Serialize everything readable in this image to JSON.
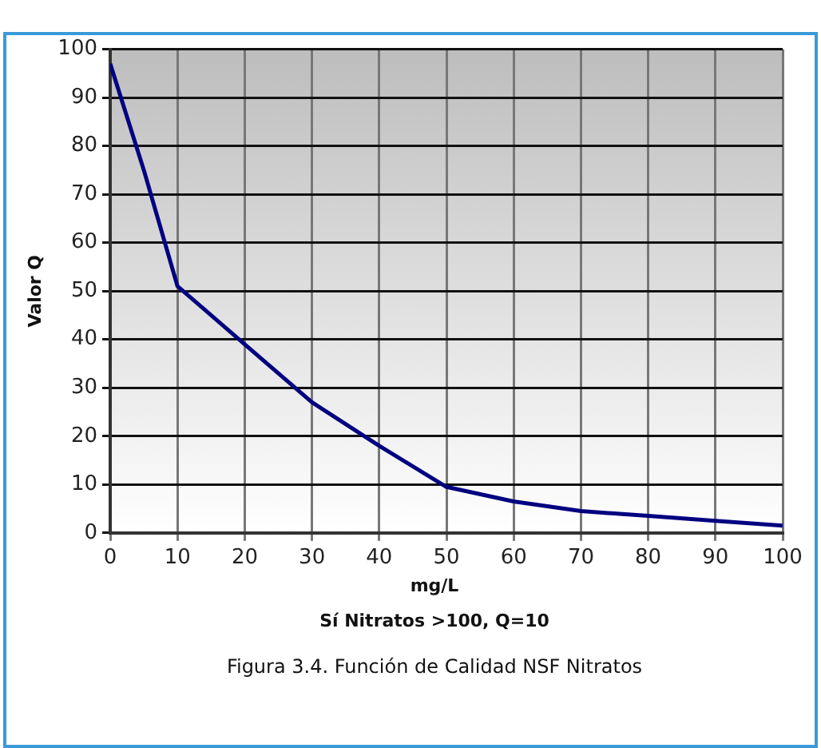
{
  "chart_data": {
    "type": "line",
    "ylabel": "Valor Q",
    "xlabel": "mg/L",
    "annotations": [
      "Sí Nitratos >100, Q=10",
      "Figura 3.4. Función de Calidad NSF Nitratos"
    ],
    "x": [
      0,
      5,
      10,
      20,
      30,
      40,
      50,
      60,
      70,
      80,
      90,
      100
    ],
    "series": [
      {
        "color": "#000080",
        "values": [
          97,
          75,
          51,
          39,
          27,
          18,
          9.5,
          6.5,
          4.5,
          3.5,
          2.5,
          1.5
        ]
      }
    ],
    "xlim": [
      0,
      100
    ],
    "xticks": [
      0,
      10,
      20,
      30,
      40,
      50,
      60,
      70,
      80,
      90,
      100
    ],
    "ylim": [
      0,
      100
    ],
    "yticks": [
      0,
      10,
      20,
      30,
      40,
      50,
      60,
      70,
      80,
      90,
      100
    ],
    "grid": true,
    "marker": "none",
    "line_style": "solid",
    "legend": false
  }
}
